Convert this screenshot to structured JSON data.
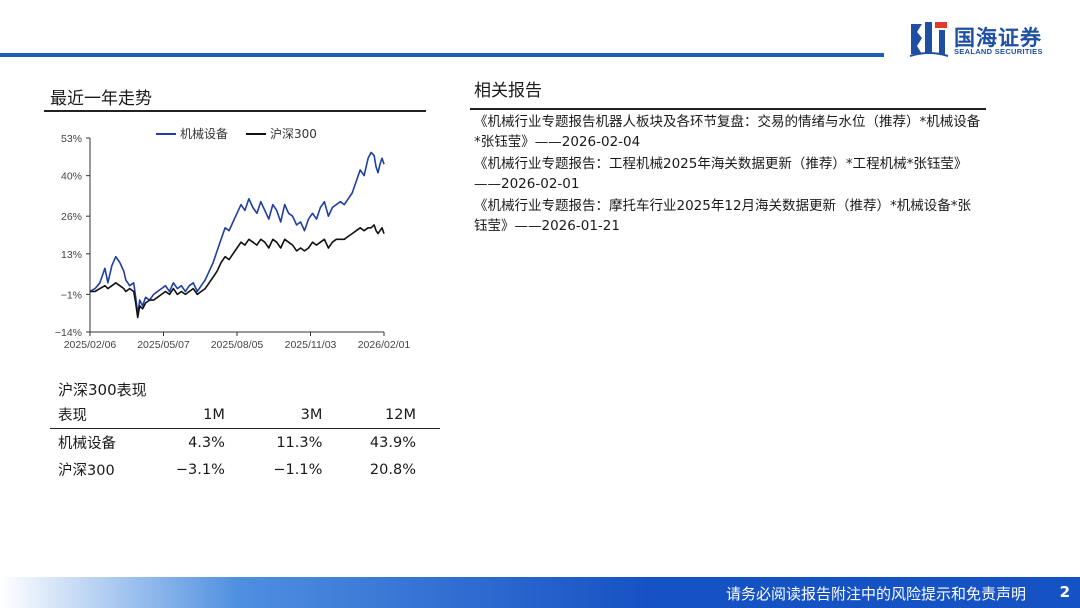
{
  "header": {
    "company_name_cn": "国海证券",
    "company_name_en": "SEALAND SECURITIES"
  },
  "trend": {
    "title": "最近一年走势"
  },
  "chart_data": {
    "type": "line",
    "title": "",
    "xlabel": "",
    "ylabel": "",
    "x_tick_labels": [
      "2025/02/06",
      "2025/05/07",
      "2025/08/05",
      "2025/11/03",
      "2026/02/01"
    ],
    "y_tick_labels": [
      "53%",
      "40%",
      "26%",
      "13%",
      "−1%",
      "−14%"
    ],
    "y_tick_values": [
      53,
      40,
      26,
      13,
      -1,
      -14
    ],
    "ylim": [
      -14,
      53
    ],
    "grid": false,
    "legend_position": "top",
    "series": [
      {
        "name": "机械设备",
        "color": "#1f3fa0",
        "x": [
          0,
          5,
          10,
          15,
          18,
          22,
          26,
          30,
          34,
          36,
          40,
          44,
          46,
          48,
          50,
          53,
          56,
          60,
          64,
          68,
          72,
          76,
          80,
          84,
          88,
          92,
          96,
          100,
          104,
          108,
          112,
          116,
          120,
          124,
          128,
          132,
          136,
          140,
          144,
          148,
          152,
          156,
          160,
          164,
          168,
          172,
          176,
          180,
          184,
          188,
          192,
          196,
          200,
          204,
          208,
          212,
          216,
          220,
          224,
          228,
          232,
          236,
          240,
          244,
          248,
          252,
          256,
          260,
          264,
          268,
          272,
          276,
          280,
          283,
          286,
          288,
          290,
          292,
          294,
          296
        ],
        "values": [
          0,
          1,
          3,
          8,
          3,
          9,
          12,
          10,
          7,
          4,
          2,
          3,
          -2,
          -8,
          -3,
          -5,
          -2,
          -3,
          -1,
          0,
          1,
          2,
          0,
          3,
          1,
          2,
          0,
          2,
          3,
          0,
          2,
          4,
          7,
          10,
          14,
          18,
          22,
          21,
          24,
          27,
          30,
          28,
          32,
          29,
          27,
          31,
          28,
          25,
          30,
          28,
          24,
          30,
          27,
          26,
          23,
          24,
          21,
          25,
          27,
          25,
          29,
          31,
          26,
          29,
          30,
          31,
          30,
          32,
          34,
          38,
          42,
          40,
          46,
          48,
          47,
          43,
          41,
          44,
          46,
          44
        ]
      },
      {
        "name": "沪深300",
        "color": "#111111",
        "x": [
          0,
          5,
          10,
          15,
          18,
          22,
          26,
          30,
          34,
          36,
          40,
          44,
          46,
          48,
          50,
          53,
          56,
          60,
          64,
          68,
          72,
          76,
          80,
          84,
          88,
          92,
          96,
          100,
          104,
          108,
          112,
          116,
          120,
          124,
          128,
          132,
          136,
          140,
          144,
          148,
          152,
          156,
          160,
          164,
          168,
          172,
          176,
          180,
          184,
          188,
          192,
          196,
          200,
          204,
          208,
          212,
          216,
          220,
          224,
          228,
          232,
          236,
          240,
          244,
          248,
          252,
          256,
          260,
          264,
          268,
          272,
          276,
          280,
          283,
          286,
          288,
          290,
          292,
          294,
          296
        ],
        "values": [
          0,
          0,
          1,
          2,
          1,
          2,
          3,
          2,
          1,
          0,
          1,
          0,
          -4,
          -9,
          -5,
          -6,
          -4,
          -3,
          -3,
          -2,
          -1,
          0,
          -1,
          1,
          -1,
          0,
          -1,
          0,
          1,
          -1,
          0,
          1,
          3,
          5,
          7,
          10,
          12,
          11,
          13,
          15,
          17,
          16,
          18,
          17,
          16,
          18,
          17,
          15,
          18,
          17,
          15,
          18,
          17,
          16,
          14,
          15,
          14,
          15,
          17,
          16,
          17,
          18,
          15,
          17,
          18,
          18,
          18,
          19,
          20,
          21,
          22,
          21,
          22,
          22,
          23,
          21,
          20,
          21,
          22,
          20
        ]
      }
    ]
  },
  "performance": {
    "title": "沪深300表现",
    "headers": [
      "表现",
      "1M",
      "3M",
      "12M"
    ],
    "rows": [
      [
        "机械设备",
        "4.3%",
        "11.3%",
        "43.9%"
      ],
      [
        "沪深300",
        "−3.1%",
        "−1.1%",
        "20.8%"
      ]
    ]
  },
  "related": {
    "title": "相关报告",
    "items": [
      "《机械行业专题报告机器人板块及各环节复盘：交易的情绪与水位（推荐）*机械设备*张钰莹》——2026-02-04",
      "《机械行业专题报告：工程机械2025年海关数据更新（推荐）*工程机械*张钰莹》——2026-02-01",
      "《机械行业专题报告：摩托车行业2025年12月海关数据更新（推荐）*机械设备*张钰莹》——2026-01-21"
    ]
  },
  "footer": {
    "disclaimer": "请务必阅读报告附注中的风险提示和免责声明",
    "page_number": "2"
  }
}
